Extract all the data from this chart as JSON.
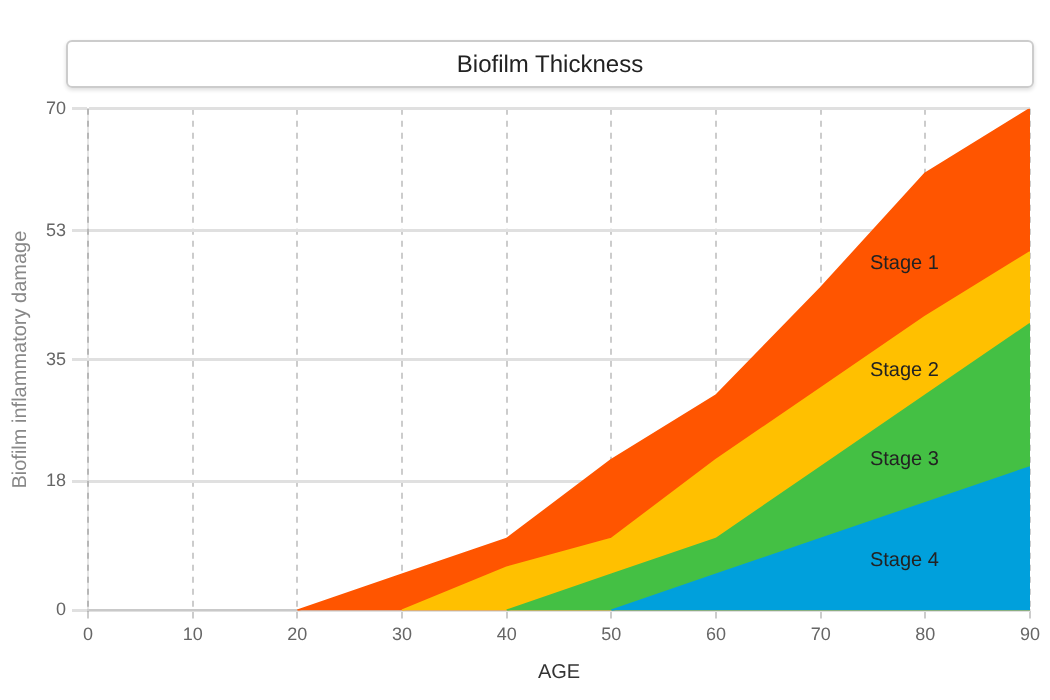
{
  "chart_data": {
    "type": "area",
    "title": "Biofilm Thickness",
    "xlabel": "AGE",
    "ylabel": "Biofilm inflammatory damage",
    "xlim": [
      0,
      90
    ],
    "xticks": [
      0,
      10,
      20,
      30,
      40,
      50,
      60,
      70,
      80,
      90
    ],
    "ylim": [
      0,
      70
    ],
    "yticks": [
      0,
      18,
      35,
      53,
      70
    ],
    "grid": true,
    "legend": false,
    "series": [
      {
        "name": "Stage 1",
        "color": "#ff5500",
        "x": [
          20,
          30,
          40,
          50,
          60,
          70,
          80,
          90
        ],
        "values": [
          0,
          5,
          10,
          21,
          30,
          45,
          61,
          70
        ]
      },
      {
        "name": "Stage 2",
        "color": "#ffc000",
        "x": [
          30,
          40,
          50,
          60,
          70,
          80,
          90
        ],
        "values": [
          0,
          6,
          10,
          21,
          31,
          41,
          50
        ]
      },
      {
        "name": "Stage 3",
        "color": "#44c044",
        "x": [
          40,
          50,
          60,
          70,
          80,
          90
        ],
        "values": [
          0,
          5,
          10,
          20,
          30,
          40
        ]
      },
      {
        "name": "Stage 4",
        "color": "#00a0dc",
        "x": [
          50,
          60,
          70,
          80,
          90
        ],
        "values": [
          0,
          5,
          10,
          15,
          20
        ]
      }
    ]
  }
}
